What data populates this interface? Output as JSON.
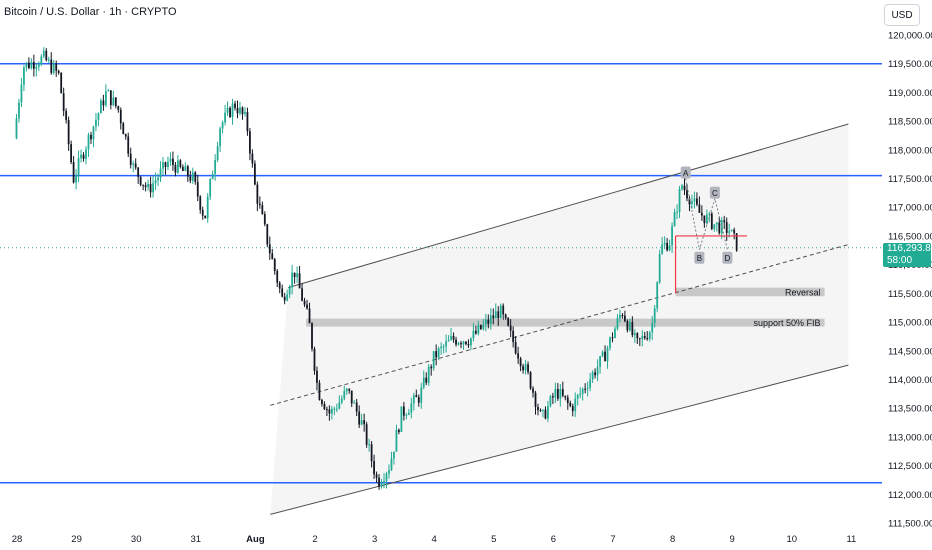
{
  "header": {
    "title": "Bitcoin / U.S. Dollar · 1h · CRYPTO"
  },
  "currency_button": {
    "label": "USD"
  },
  "last_price": {
    "price": "116,293.89",
    "countdown": "58:00",
    "value": 116293.89
  },
  "colors": {
    "up": "#22ab94",
    "down": "#131722",
    "horizontal_levels": "#2962ff",
    "channel_fill": "#f2f2f2",
    "zone_fill": "#c8c8c8",
    "pattern_line": "#f23645",
    "axis_text": "#131722"
  },
  "chart_data": {
    "type": "candlestick",
    "x_ticks": [
      "28",
      "29",
      "30",
      "31",
      "Aug",
      "2",
      "3",
      "4",
      "5",
      "6",
      "7",
      "8",
      "9",
      "10",
      "11"
    ],
    "x_range_days": [
      0,
      14.1
    ],
    "y_ticks": [
      "120,000.00",
      "119,500.00",
      "119,000.00",
      "118,500.00",
      "118,000.00",
      "117,500.00",
      "117,000.00",
      "116,500.00",
      "116,000.00",
      "115,500.00",
      "115,000.00",
      "114,500.00",
      "114,000.00",
      "113,500.00",
      "113,000.00",
      "112,500.00",
      "112,000.00",
      "111,500.00"
    ],
    "ylim": [
      111500,
      120000
    ],
    "horizontal_levels": [
      119500,
      117550,
      112200
    ],
    "channel": {
      "upper": [
        [
          4.6,
          115600
        ],
        [
          14.0,
          118450
        ]
      ],
      "lower": [
        [
          4.3,
          111650
        ],
        [
          14.0,
          114250
        ]
      ],
      "mid": [
        [
          4.3,
          113550
        ],
        [
          14.0,
          116350
        ]
      ]
    },
    "zones": [
      {
        "label": "Reversal",
        "x": [
          11.1,
          13.6
        ],
        "y": [
          115450,
          115600
        ]
      },
      {
        "label": "support 50% FIB",
        "x": [
          4.9,
          13.6
        ],
        "y": [
          114920,
          115060
        ]
      }
    ],
    "pattern_points": [
      {
        "label": "A",
        "x": 11.27,
        "y": 117500
      },
      {
        "label": "B",
        "x": 11.5,
        "y": 116260
      },
      {
        "label": "C",
        "x": 11.76,
        "y": 117150
      },
      {
        "label": "D",
        "x": 11.97,
        "y": 116260
      }
    ],
    "pattern_guides": {
      "vertical": [
        [
          11.1,
          116500
        ],
        [
          11.1,
          115500
        ]
      ],
      "horizontal": [
        [
          11.1,
          116500
        ],
        [
          12.3,
          116500
        ]
      ]
    },
    "path_points": [
      [
        0,
        118200
      ],
      [
        0.15,
        119450
      ],
      [
        0.5,
        119600
      ],
      [
        0.75,
        119300
      ],
      [
        1,
        117500
      ],
      [
        1.25,
        118200
      ],
      [
        1.55,
        119000
      ],
      [
        1.75,
        118700
      ],
      [
        2,
        117700
      ],
      [
        2.25,
        117300
      ],
      [
        2.6,
        117800
      ],
      [
        3,
        117500
      ],
      [
        3.2,
        116800
      ],
      [
        3.45,
        118400
      ],
      [
        3.7,
        118800
      ],
      [
        3.9,
        118500
      ],
      [
        4.05,
        117300
      ],
      [
        4.3,
        116200
      ],
      [
        4.5,
        115400
      ],
      [
        4.7,
        115900
      ],
      [
        4.95,
        115000
      ],
      [
        5.1,
        113800
      ],
      [
        5.3,
        113400
      ],
      [
        5.6,
        113800
      ],
      [
        5.85,
        113200
      ],
      [
        6.1,
        112200
      ],
      [
        6.3,
        112500
      ],
      [
        6.5,
        113400
      ],
      [
        6.8,
        113700
      ],
      [
        7.05,
        114400
      ],
      [
        7.35,
        114700
      ],
      [
        7.65,
        114700
      ],
      [
        7.95,
        115000
      ],
      [
        8.15,
        115200
      ],
      [
        8.4,
        114600
      ],
      [
        8.65,
        114000
      ],
      [
        8.85,
        113300
      ],
      [
        9.1,
        113800
      ],
      [
        9.35,
        113500
      ],
      [
        9.65,
        114000
      ],
      [
        9.9,
        114400
      ],
      [
        10.2,
        115200
      ],
      [
        10.45,
        114600
      ],
      [
        10.7,
        114900
      ],
      [
        10.85,
        116300
      ],
      [
        11.0,
        116400
      ],
      [
        11.2,
        117400
      ],
      [
        11.32,
        117200
      ],
      [
        11.5,
        116900
      ],
      [
        11.75,
        116700
      ],
      [
        12.0,
        116600
      ],
      [
        12.15,
        116300
      ]
    ]
  }
}
